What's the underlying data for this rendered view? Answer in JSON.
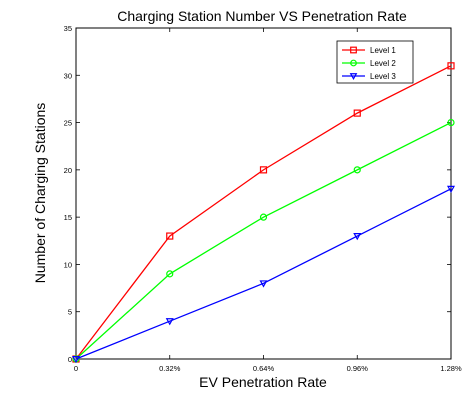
{
  "chart_data": {
    "type": "line",
    "title": "Charging Station Number VS Penetration Rate",
    "xlabel": "EV Penetration Rate",
    "ylabel": "Number of Charging Stations",
    "x": [
      0,
      0.32,
      0.64,
      0.96,
      1.28
    ],
    "x_tick_labels": [
      "0",
      "0.32%",
      "0.64%",
      "0.96%",
      "1.28%"
    ],
    "xlim": [
      0,
      1.28
    ],
    "ylim": [
      0,
      35
    ],
    "y_ticks": [
      0,
      5,
      10,
      15,
      20,
      25,
      30,
      35
    ],
    "grid": false,
    "legend_position": "top-right",
    "series": [
      {
        "name": "Level 1",
        "values": [
          0,
          13,
          20,
          26,
          31
        ],
        "color": "#ff0000",
        "marker": "square"
      },
      {
        "name": "Level 2",
        "values": [
          0,
          9,
          15,
          20,
          25
        ],
        "color": "#00ff00",
        "marker": "circle"
      },
      {
        "name": "Level 3",
        "values": [
          0,
          4,
          8,
          13,
          18
        ],
        "color": "#0000ff",
        "marker": "triangle-down"
      }
    ]
  }
}
